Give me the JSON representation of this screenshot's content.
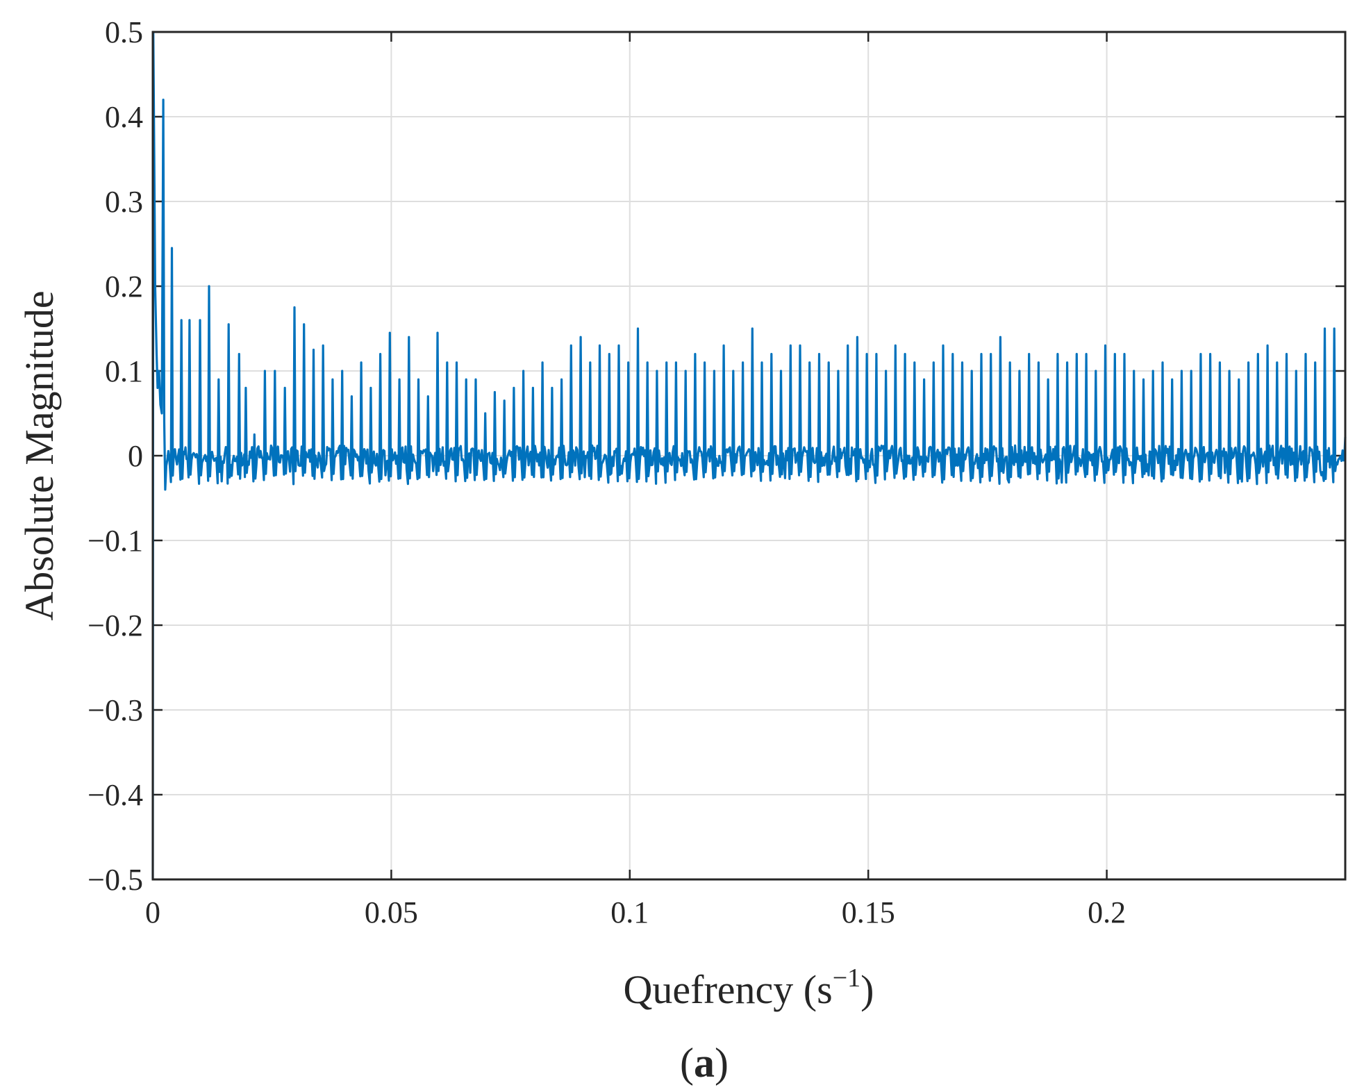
{
  "chart_data": {
    "type": "line",
    "title": "",
    "xlabel": "Quefrency (s",
    "xlabel_superscript": "−1",
    "xlabel_close": ")",
    "ylabel": "Absolute Magnitude",
    "panel_label": "(a)",
    "xlim": [
      0,
      0.25
    ],
    "ylim": [
      -0.5,
      0.5
    ],
    "xticks": [
      0,
      0.05,
      0.1,
      0.15,
      0.2
    ],
    "xtick_labels": [
      "0",
      "0.05",
      "0.1",
      "0.15",
      "0.2"
    ],
    "yticks": [
      0.5,
      0.4,
      0.3,
      0.2,
      0.1,
      0,
      -0.1,
      -0.2,
      -0.3,
      -0.4,
      -0.5
    ],
    "ytick_labels": [
      "0.5",
      "0.4",
      "0.3",
      "0.2",
      "0.1",
      "0",
      "−0.1",
      "−0.2",
      "−0.3",
      "−0.4",
      "−0.5"
    ],
    "grid": true,
    "series_color": "#0072BD",
    "baseline_noise": 0.012,
    "initial": {
      "x": [
        0,
        0.0001,
        0.0003,
        0.0005,
        0.0008,
        0.001,
        0.0013,
        0.0016,
        0.0019,
        0.0022,
        0.0024,
        0.0026
      ],
      "y": [
        -0.5,
        0.5,
        0.35,
        0.2,
        0.12,
        0.08,
        0.1,
        0.06,
        0.05,
        0.42,
        0.04,
        -0.04
      ]
    },
    "peaks": {
      "x": [
        0.0022,
        0.004,
        0.006,
        0.0077,
        0.0099,
        0.0118,
        0.0138,
        0.0159,
        0.0181,
        0.0195,
        0.0213,
        0.0235,
        0.0256,
        0.0277,
        0.0297,
        0.0317,
        0.0337,
        0.0357,
        0.0377,
        0.0397,
        0.0417,
        0.0437,
        0.0457,
        0.0477,
        0.0497,
        0.0517,
        0.0537,
        0.0557,
        0.0577,
        0.0597,
        0.0617,
        0.0637,
        0.0657,
        0.0677,
        0.0697,
        0.0717,
        0.0737,
        0.0757,
        0.0777,
        0.0797,
        0.0817,
        0.0837,
        0.0857,
        0.0877,
        0.0897,
        0.0917,
        0.0937,
        0.0957,
        0.0977,
        0.0997,
        0.1017,
        0.1037,
        0.1057,
        0.1077,
        0.1097,
        0.1117,
        0.1137,
        0.1157,
        0.1177,
        0.1197,
        0.1217,
        0.1237,
        0.1257,
        0.1277,
        0.1297,
        0.1317,
        0.1337,
        0.1357,
        0.1377,
        0.1397,
        0.1417,
        0.1437,
        0.1457,
        0.1477,
        0.1497,
        0.1517,
        0.1537,
        0.1557,
        0.1577,
        0.1597,
        0.1617,
        0.1637,
        0.1657,
        0.1677,
        0.1697,
        0.1717,
        0.1737,
        0.1757,
        0.1777,
        0.1797,
        0.1817,
        0.1837,
        0.1857,
        0.1877,
        0.1897,
        0.1917,
        0.1937,
        0.1957,
        0.1977,
        0.1997,
        0.2017,
        0.2037,
        0.2057,
        0.2077,
        0.2097,
        0.2117,
        0.2137,
        0.2157,
        0.2177,
        0.2197,
        0.2217,
        0.2237,
        0.2257,
        0.2277,
        0.2297,
        0.2317,
        0.2337,
        0.2357,
        0.2377,
        0.2397,
        0.2417,
        0.2437,
        0.2457,
        0.2477
      ],
      "y": [
        0.425,
        0.245,
        0.16,
        0.16,
        0.16,
        0.2,
        0.09,
        0.155,
        0.12,
        0.08,
        0.025,
        0.1,
        0.1,
        0.08,
        0.175,
        0.155,
        0.125,
        0.13,
        0.09,
        0.1,
        0.07,
        0.11,
        0.08,
        0.12,
        0.145,
        0.09,
        0.14,
        0.09,
        0.07,
        0.145,
        0.11,
        0.11,
        0.09,
        0.09,
        0.05,
        0.075,
        0.065,
        0.08,
        0.1,
        0.08,
        0.11,
        0.08,
        0.09,
        0.13,
        0.14,
        0.11,
        0.13,
        0.12,
        0.13,
        0.11,
        0.15,
        0.11,
        0.1,
        0.11,
        0.11,
        0.1,
        0.12,
        0.11,
        0.1,
        0.13,
        0.1,
        0.11,
        0.15,
        0.11,
        0.12,
        0.1,
        0.13,
        0.13,
        0.11,
        0.12,
        0.11,
        0.1,
        0.13,
        0.14,
        0.12,
        0.12,
        0.1,
        0.13,
        0.12,
        0.11,
        0.09,
        0.11,
        0.13,
        0.12,
        0.11,
        0.1,
        0.12,
        0.12,
        0.14,
        0.11,
        0.1,
        0.12,
        0.11,
        0.09,
        0.12,
        0.11,
        0.12,
        0.12,
        0.1,
        0.13,
        0.12,
        0.12,
        0.1,
        0.09,
        0.1,
        0.11,
        0.09,
        0.1,
        0.1,
        0.12,
        0.12,
        0.11,
        0.1,
        0.09,
        0.11,
        0.12,
        0.13,
        0.11,
        0.12,
        0.1,
        0.12,
        0.11,
        0.15,
        0.15
      ]
    }
  }
}
